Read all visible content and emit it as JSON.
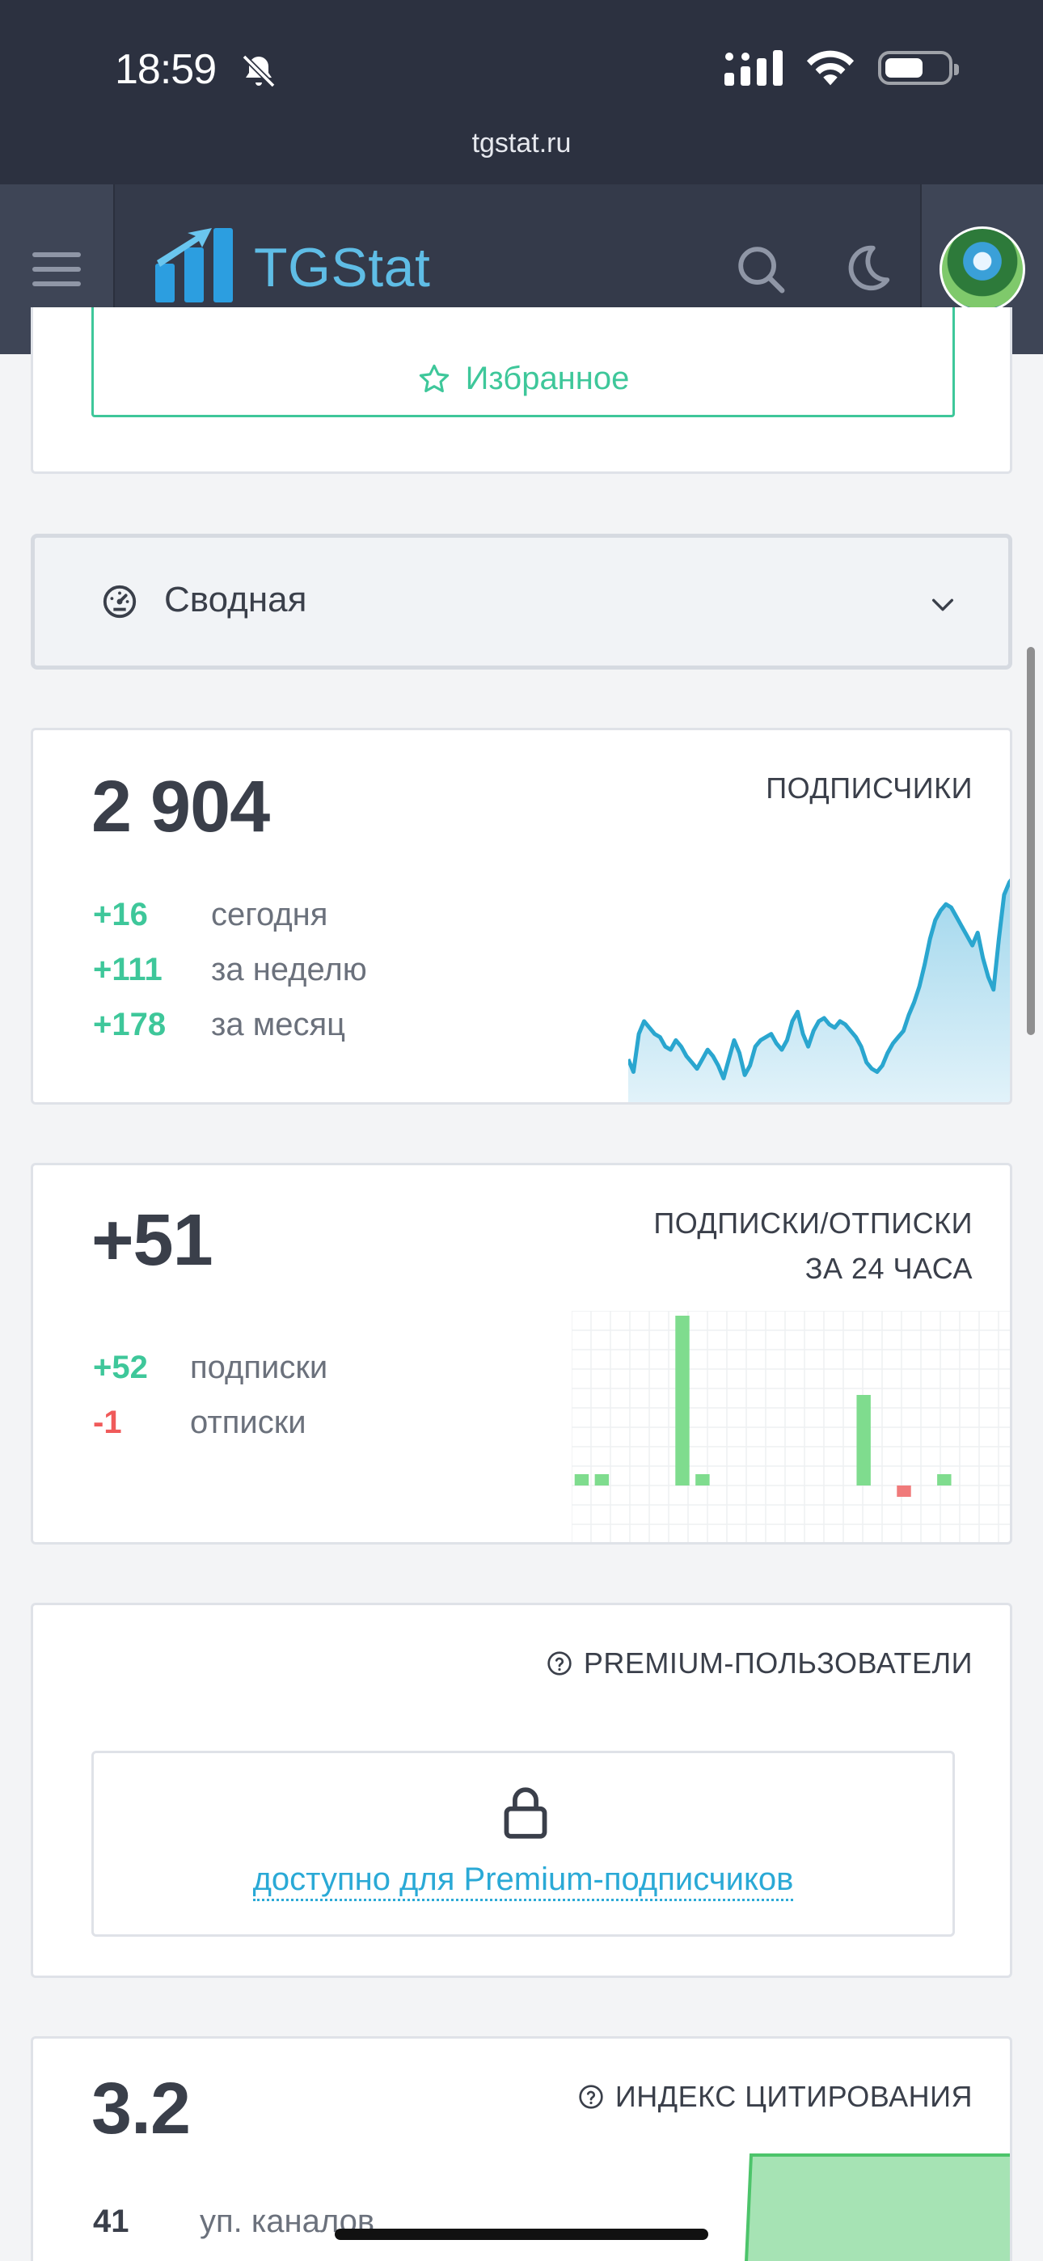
{
  "status_bar": {
    "time": "18:59",
    "url": "tgstat.ru"
  },
  "header": {
    "logo_text": "TGStat"
  },
  "favorites": {
    "label": "Избранное"
  },
  "section_select": {
    "label": "Сводная"
  },
  "subscribers_card": {
    "caption": "ПОДПИСЧИКИ",
    "total": "2 904",
    "rows": [
      {
        "value": "+16",
        "label": "сегодня"
      },
      {
        "value": "+111",
        "label": "за неделю"
      },
      {
        "value": "+178",
        "label": "за месяц"
      }
    ]
  },
  "subs_unsubs_card": {
    "caption_line1": "ПОДПИСКИ/ОТПИСКИ",
    "caption_line2": "ЗА 24 ЧАСА",
    "total": "+51",
    "subscriptions": {
      "value": "+52",
      "label": "подписки"
    },
    "unsubscriptions": {
      "value": "-1",
      "label": "отписки"
    }
  },
  "premium_card": {
    "caption": "PREMIUM-ПОЛЬЗОВАТЕЛИ",
    "locked_text": "доступно для Premium-подписчиков"
  },
  "citation_card": {
    "caption": "ИНДЕКС ЦИТИРОВАНИЯ",
    "value": "3.2",
    "mentions": {
      "value": "41",
      "label": "уп. каналов"
    }
  },
  "chart_data": [
    {
      "type": "area",
      "name": "subscribers",
      "values": [
        10,
        6,
        18,
        22,
        20,
        18,
        17,
        14,
        13,
        16,
        14,
        11,
        9,
        7,
        10,
        13,
        11,
        8,
        4,
        10,
        16,
        12,
        5,
        8,
        14,
        16,
        17,
        18,
        15,
        13,
        16,
        22,
        25,
        18,
        14,
        19,
        22,
        23,
        21,
        20,
        22,
        21,
        19,
        17,
        14,
        9,
        7,
        6,
        8,
        12,
        15,
        17,
        19,
        24,
        28,
        33,
        40,
        48,
        54,
        57,
        59,
        58,
        55,
        52,
        49,
        46,
        50,
        42,
        36,
        32,
        48,
        62,
        66,
        68
      ]
    },
    {
      "type": "bar",
      "name": "subscriptions_unsubscriptions_24h",
      "values": [
        1,
        1,
        0,
        0,
        0,
        15,
        1,
        0,
        0,
        0,
        0,
        0,
        0,
        0,
        8,
        0,
        -1,
        0,
        1,
        0,
        0,
        0
      ],
      "colors": {
        "positive": "#7fdc8e",
        "negative": "#f07a7a"
      }
    },
    {
      "type": "area",
      "name": "citation_index",
      "color": "#a6e3b4",
      "line_color": "#4cc46a"
    }
  ]
}
